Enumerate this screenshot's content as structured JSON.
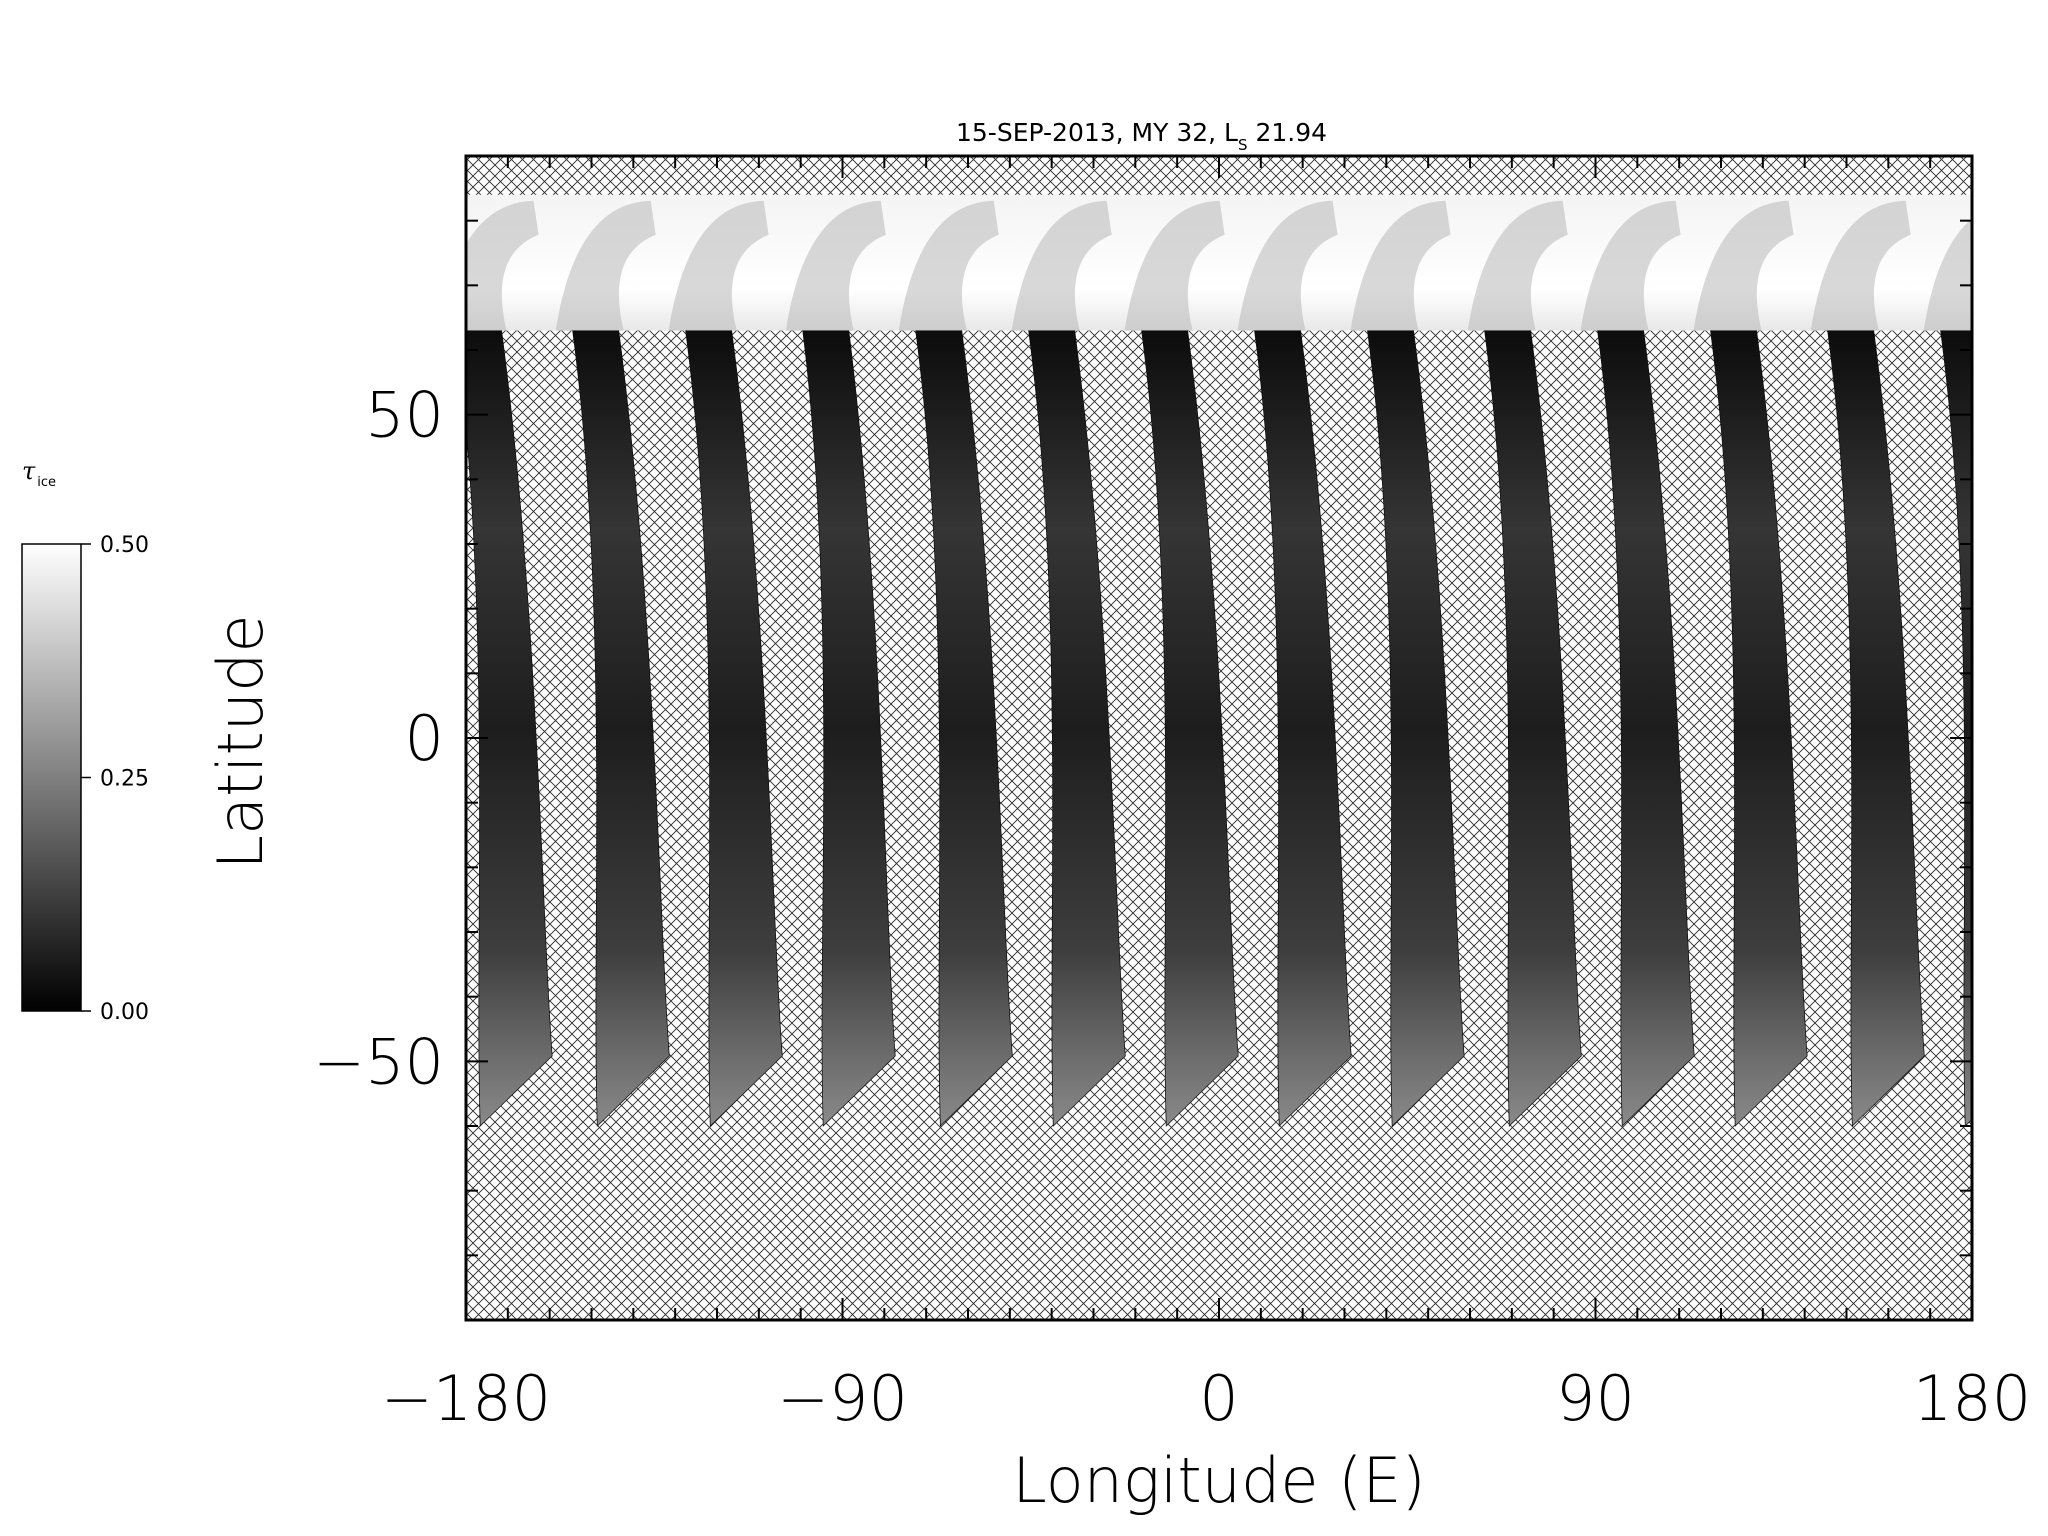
{
  "chart_data": {
    "type": "heatmap",
    "title_main": "15-SEP-2013, MY 32,  L",
    "title_sub": "S",
    "title_tail": " 21.94",
    "xlabel": "Longitude (E)",
    "ylabel": "Latitude",
    "xlim": [
      -180,
      180
    ],
    "ylim": [
      -90,
      90
    ],
    "xticks": [
      -180,
      -90,
      0,
      90,
      180
    ],
    "xtick_labels": [
      "−180",
      "−90",
      "0",
      "90",
      "180"
    ],
    "yticks": [
      50,
      0,
      -50
    ],
    "ytick_labels": [
      "50",
      "0",
      "−50"
    ],
    "grid": false,
    "missing_pattern": "crosshatch",
    "polar_cap_lat": 63,
    "swath_top_lat": 84,
    "swath_north_lon_centers": [
      -177,
      -149,
      -122,
      -94,
      -67,
      -40,
      -13,
      14,
      41,
      69,
      96,
      123,
      151,
      178
    ],
    "swath_south_lon_centers": [
      -168,
      -140,
      -113,
      -86,
      -58,
      -31,
      -4,
      23,
      50,
      78,
      105,
      132,
      160
    ],
    "swath_south_lat_limit": -60,
    "colorbar": {
      "label_symbol": "τ",
      "label_sub": "ice",
      "min": 0.0,
      "max": 0.5,
      "ticks": [
        0.0,
        0.25,
        0.5
      ],
      "tick_labels": [
        "0.00",
        "0.25",
        "0.50"
      ],
      "colormap": "grayscale",
      "low_color": "#000000",
      "high_color": "#ffffff"
    }
  }
}
